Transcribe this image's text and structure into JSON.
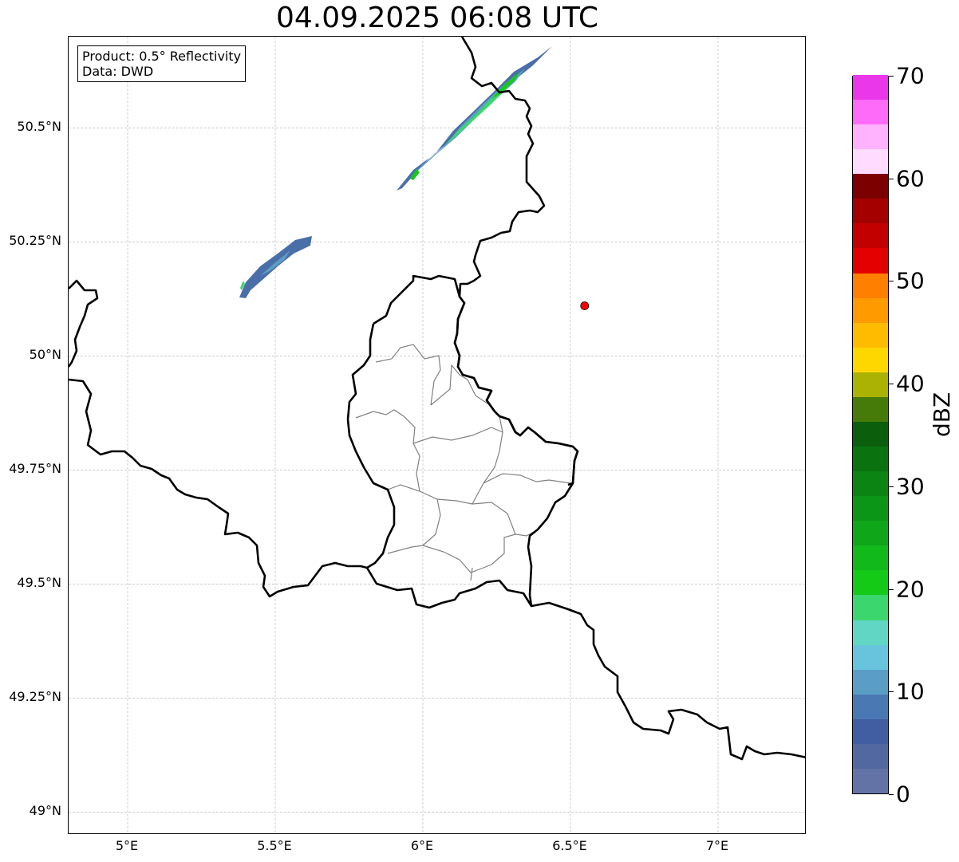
{
  "title": "04.09.2025 06:08 UTC",
  "info": {
    "product": "Product: 0.5° Reflectivity",
    "data": "Data: DWD"
  },
  "map": {
    "extent": {
      "lon": [
        4.8,
        7.3
      ],
      "lat": [
        48.95,
        50.7
      ]
    },
    "lat_ticks": [
      {
        "value": 50.5,
        "label": "50.5°N"
      },
      {
        "value": 50.25,
        "label": "50.25°N"
      },
      {
        "value": 50.0,
        "label": "50°N"
      },
      {
        "value": 49.75,
        "label": "49.75°N"
      },
      {
        "value": 49.5,
        "label": "49.5°N"
      },
      {
        "value": 49.25,
        "label": "49.25°N"
      },
      {
        "value": 49.0,
        "label": "49°N"
      }
    ],
    "lon_ticks": [
      {
        "value": 5.0,
        "label": "5°E"
      },
      {
        "value": 5.5,
        "label": "5.5°E"
      },
      {
        "value": 6.0,
        "label": "6°E"
      },
      {
        "value": 6.5,
        "label": "6.5°E"
      },
      {
        "value": 7.0,
        "label": "7°E"
      }
    ],
    "station": {
      "lon": 6.548,
      "lat": 50.11,
      "color": "#ff0000"
    },
    "colors": {
      "border": "#000000",
      "district": "#808080",
      "grid": "#b0b0b0"
    }
  },
  "colorbar": {
    "label": "dBZ",
    "min": 0,
    "max": 70,
    "ticks": [
      "0",
      "10",
      "20",
      "30",
      "40",
      "50",
      "60",
      "70"
    ],
    "colors": [
      "#6473a6",
      "#51699f",
      "#425ea3",
      "#4a78b2",
      "#5a9ec6",
      "#68c4dc",
      "#62d6c4",
      "#3cd66e",
      "#14c918",
      "#11b91a",
      "#10a619",
      "#0d9518",
      "#0b8414",
      "#0a720f",
      "#0b5f0c",
      "#467b0a",
      "#aab304",
      "#ffd700",
      "#ffbb00",
      "#ff9a00",
      "#ff7f00",
      "#e30000",
      "#c20000",
      "#a50000",
      "#7c0000",
      "#ffdcff",
      "#ffb3ff",
      "#ff6bf9",
      "#ea37ea"
    ]
  }
}
